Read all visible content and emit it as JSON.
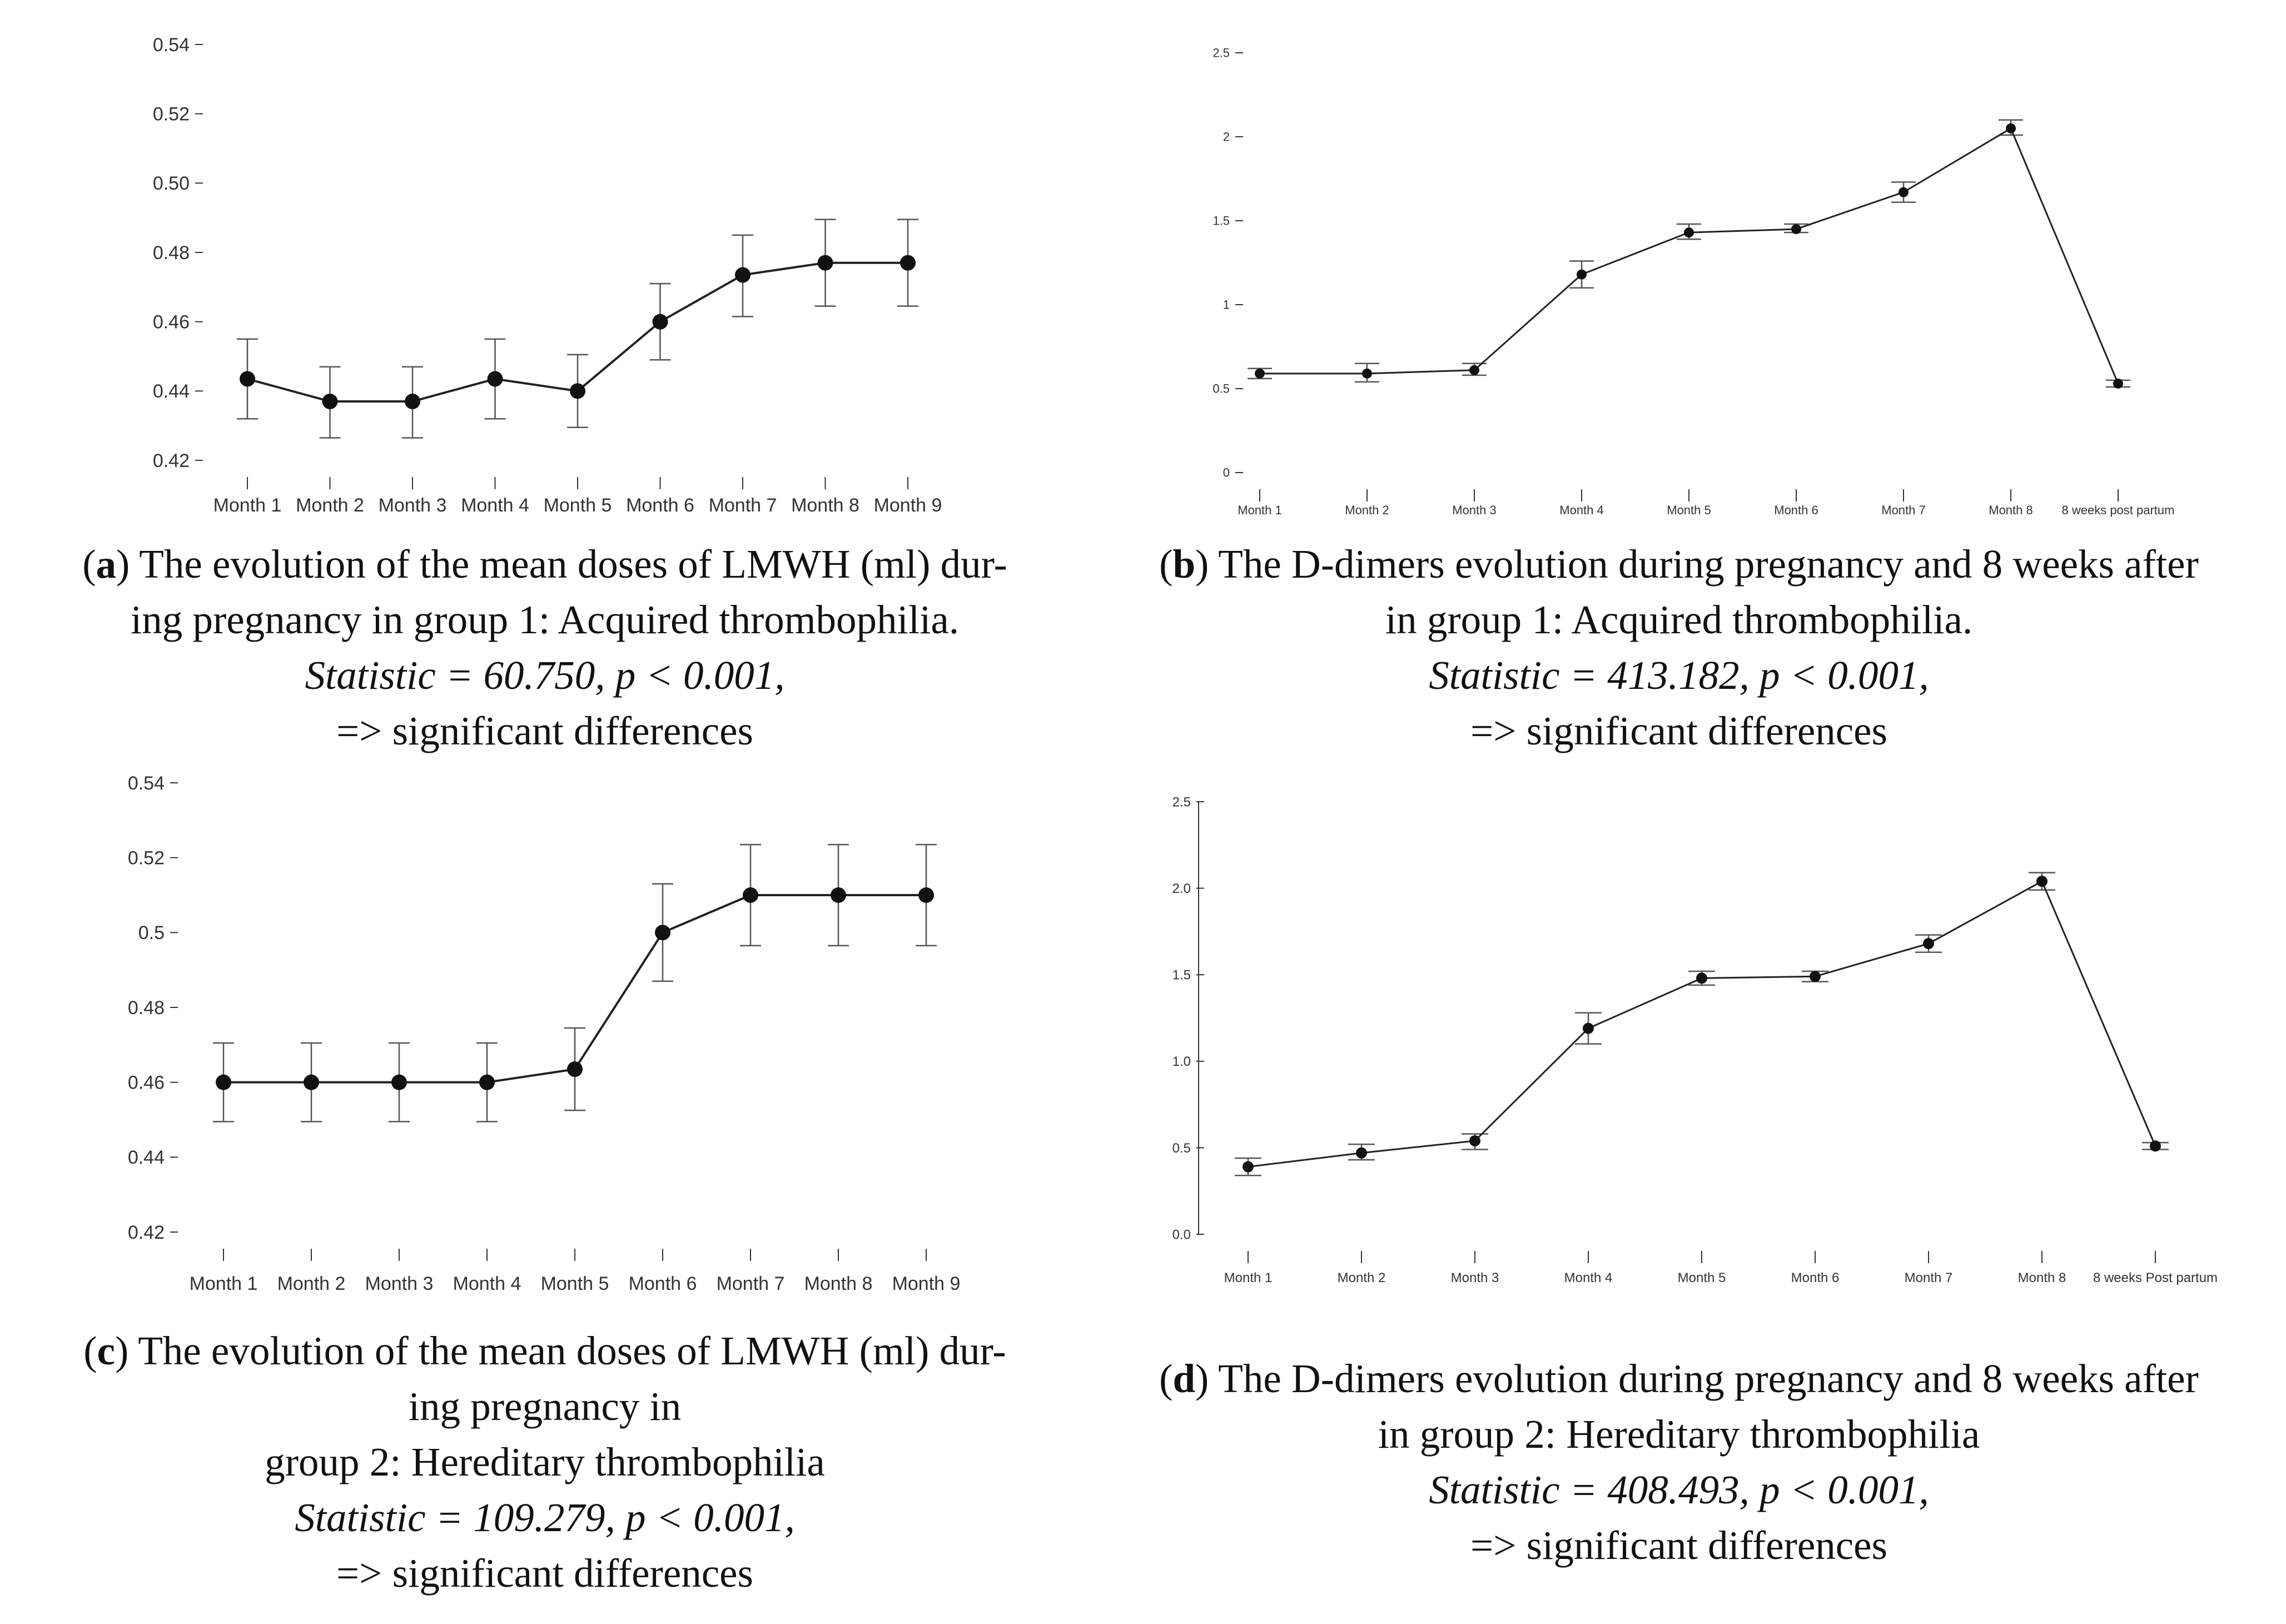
{
  "colors": {
    "line": "#222222",
    "marker": "#111111",
    "axis": "#333333",
    "text": "#111111"
  },
  "chart_data": [
    {
      "panel": "a",
      "type": "line",
      "categories": [
        "Month 1",
        "Month 2",
        "Month 3",
        "Month 4",
        "Month 5",
        "Month 6",
        "Month 7",
        "Month 8",
        "Month 9"
      ],
      "series": [
        {
          "name": "Mean LMWH dose (ml)",
          "values": [
            0.4435,
            0.437,
            0.437,
            0.4435,
            0.44,
            0.46,
            0.4735,
            0.477,
            0.477
          ],
          "lower": [
            0.432,
            0.4265,
            0.4265,
            0.432,
            0.4295,
            0.449,
            0.4615,
            0.4645,
            0.4645
          ],
          "upper": [
            0.455,
            0.447,
            0.447,
            0.455,
            0.4505,
            0.471,
            0.485,
            0.4895,
            0.4895
          ]
        }
      ],
      "yticks": [
        0.42,
        0.44,
        0.46,
        0.48,
        0.5,
        0.52,
        0.54
      ],
      "ytick_labels": [
        "0.42",
        "0.44",
        "0.46",
        "0.48",
        "0.50",
        "0.52",
        "0.54"
      ],
      "ylim": [
        0.42,
        0.54
      ],
      "caption": {
        "label": "a",
        "line1": ") The evolution of the mean doses of LMWH (ml) dur-",
        "line2": "ing pregnancy in group 1: Acquired thrombophilia.",
        "statistic": "Statistic = 60.750, p < 0.001,",
        "conclusion": "=> significant differences"
      }
    },
    {
      "panel": "b",
      "type": "line",
      "categories": [
        "Month 1",
        "Month 2",
        "Month 3",
        "Month 4",
        "Month 5",
        "Month 6",
        "Month 7",
        "Month 8",
        "8 weeks post partum"
      ],
      "series": [
        {
          "name": "D-dimers",
          "values": [
            0.59,
            0.59,
            0.61,
            1.18,
            1.43,
            1.45,
            1.67,
            2.05,
            0.53
          ],
          "lower": [
            0.56,
            0.54,
            0.58,
            1.1,
            1.39,
            1.43,
            1.61,
            2.01,
            0.51
          ],
          "upper": [
            0.62,
            0.65,
            0.65,
            1.26,
            1.48,
            1.48,
            1.73,
            2.1,
            0.55
          ]
        }
      ],
      "yticks": [
        0,
        0.5,
        1,
        1.5,
        2,
        2.5
      ],
      "ytick_labels": [
        "0",
        "0.5",
        "1",
        "1.5",
        "2",
        "2.5"
      ],
      "ylim": [
        0,
        2.5
      ],
      "caption": {
        "label": "b",
        "line1": ") The D-dimers evolution during pregnancy and 8 weeks after",
        "line2": "in group 1: Acquired thrombophilia.",
        "statistic": "Statistic = 413.182, p < 0.001,",
        "conclusion": "=> significant differences"
      }
    },
    {
      "panel": "c",
      "type": "line",
      "categories": [
        "Month 1",
        "Month 2",
        "Month 3",
        "Month 4",
        "Month 5",
        "Month 6",
        "Month 7",
        "Month 8",
        "Month 9"
      ],
      "series": [
        {
          "name": "Mean LMWH dose (ml)",
          "values": [
            0.46,
            0.46,
            0.46,
            0.46,
            0.4635,
            0.5,
            0.51,
            0.51,
            0.51
          ],
          "lower": [
            0.4495,
            0.4495,
            0.4495,
            0.4495,
            0.4525,
            0.487,
            0.4965,
            0.4965,
            0.4965
          ],
          "upper": [
            0.4705,
            0.4705,
            0.4705,
            0.4705,
            0.4745,
            0.513,
            0.5235,
            0.5235,
            0.5235
          ]
        }
      ],
      "yticks": [
        0.42,
        0.44,
        0.46,
        0.48,
        0.5,
        0.52,
        0.54
      ],
      "ytick_labels": [
        "0.42",
        "0.44",
        "0.46",
        "0.48",
        "0.5",
        "0.52",
        "0.54"
      ],
      "ylim": [
        0.42,
        0.54
      ],
      "caption": {
        "label": "c",
        "line1": ") The evolution of the mean doses of LMWH (ml) dur-",
        "line2": "ing pregnancy in",
        "line3": "group 2: Hereditary thrombophilia",
        "statistic": "Statistic = 109.279, p < 0.001,",
        "conclusion": "=> significant differences"
      }
    },
    {
      "panel": "d",
      "type": "line",
      "categories": [
        "Month 1",
        "Month 2",
        "Month 3",
        "Month 4",
        "Month 5",
        "Month 6",
        "Month 7",
        "Month 8",
        "8 weeks Post partum"
      ],
      "series": [
        {
          "name": "D-dimers",
          "values": [
            0.39,
            0.47,
            0.54,
            1.19,
            1.48,
            1.49,
            1.68,
            2.04,
            0.51
          ],
          "lower": [
            0.34,
            0.43,
            0.49,
            1.1,
            1.44,
            1.46,
            1.63,
            1.99,
            0.49
          ],
          "upper": [
            0.44,
            0.52,
            0.58,
            1.28,
            1.52,
            1.52,
            1.73,
            2.09,
            0.53
          ]
        }
      ],
      "yticks": [
        0,
        0.5,
        1.0,
        1.5,
        2.0,
        2.5
      ],
      "ytick_labels": [
        "0.0",
        "0.5",
        "1.0",
        "1.5",
        "2.0",
        "2.5"
      ],
      "ylim": [
        0,
        2.5
      ],
      "caption": {
        "label": "d",
        "line1": ") The D-dimers evolution during pregnancy and 8 weeks after",
        "line2": "in group 2: Hereditary thrombophilia",
        "statistic": "Statistic = 408.493, p < 0.001,",
        "conclusion": "=> significant differences"
      }
    }
  ]
}
